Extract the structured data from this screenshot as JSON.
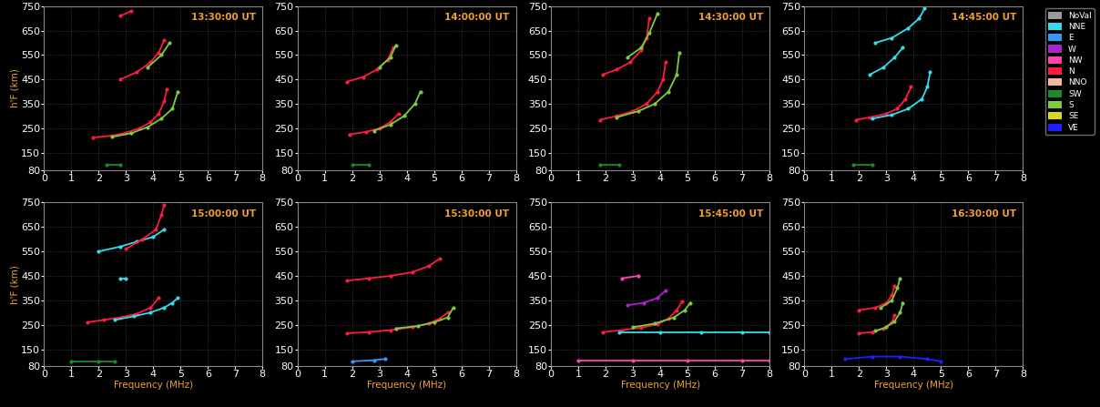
{
  "legend": "upper right",
  "color_key": [
    {
      "name": "NoVal",
      "color": "#9a9a9a"
    },
    {
      "name": "NNE",
      "color": "#33ddee"
    },
    {
      "name": "E",
      "color": "#3399ff"
    },
    {
      "name": "W",
      "color": "#aa22cc"
    },
    {
      "name": "NW",
      "color": "#ff44aa"
    },
    {
      "name": "N",
      "color": "#ff1a40"
    },
    {
      "name": "NNO",
      "color": "#f5b7a0"
    },
    {
      "name": "SW",
      "color": "#1a8a2a"
    },
    {
      "name": "S",
      "color": "#7ccd3c"
    },
    {
      "name": "SE",
      "color": "#d8d820"
    },
    {
      "name": "VE",
      "color": "#2020ff"
    }
  ],
  "chart_data": [
    {
      "type": "line",
      "title": "13:30:00 UT",
      "y_label": "h'F (km)",
      "grid": true,
      "xlim": [
        0,
        8
      ],
      "xticks": [
        0,
        1,
        2,
        3,
        4,
        5,
        6,
        7,
        8
      ],
      "ylim": [
        80,
        750
      ],
      "yticks": [
        80,
        150,
        250,
        350,
        450,
        550,
        650,
        750
      ],
      "series": [
        {
          "name": "N",
          "color": "#ff1a40",
          "x": [
            1.8,
            2.5,
            3.0,
            3.5,
            3.9,
            4.2,
            4.4,
            4.5
          ],
          "values": [
            212,
            220,
            232,
            250,
            275,
            310,
            360,
            410
          ]
        },
        {
          "name": "S",
          "color": "#7ccd3c",
          "x": [
            2.5,
            3.2,
            3.8,
            4.3,
            4.7,
            4.9
          ],
          "values": [
            215,
            230,
            255,
            290,
            330,
            400
          ]
        },
        {
          "name": "N",
          "color": "#ff1a40",
          "x": [
            2.8,
            3.4,
            3.9,
            4.2,
            4.4
          ],
          "values": [
            450,
            480,
            520,
            560,
            610
          ]
        },
        {
          "name": "S",
          "color": "#7ccd3c",
          "x": [
            3.8,
            4.3,
            4.6
          ],
          "values": [
            500,
            550,
            600
          ]
        },
        {
          "name": "N",
          "color": "#ff1a40",
          "x": [
            2.8,
            3.2
          ],
          "values": [
            710,
            730
          ]
        },
        {
          "name": "SW",
          "color": "#1a8a2a",
          "x": [
            2.3,
            2.8
          ],
          "values": [
            100,
            100
          ]
        }
      ]
    },
    {
      "type": "line",
      "title": "14:00:00 UT",
      "grid": true,
      "xlim": [
        0,
        8
      ],
      "xticks": [
        0,
        1,
        2,
        3,
        4,
        5,
        6,
        7,
        8
      ],
      "ylim": [
        80,
        750
      ],
      "yticks": [
        80,
        150,
        250,
        350,
        450,
        550,
        650,
        750
      ],
      "series": [
        {
          "name": "N",
          "color": "#ff1a40",
          "x": [
            1.9,
            2.5,
            3.0,
            3.4,
            3.7
          ],
          "values": [
            225,
            235,
            250,
            275,
            310
          ]
        },
        {
          "name": "S",
          "color": "#7ccd3c",
          "x": [
            2.8,
            3.4,
            3.9,
            4.3,
            4.5
          ],
          "values": [
            240,
            265,
            300,
            350,
            400
          ]
        },
        {
          "name": "N",
          "color": "#ff1a40",
          "x": [
            1.8,
            2.4,
            2.9,
            3.3,
            3.5
          ],
          "values": [
            440,
            460,
            490,
            530,
            580
          ]
        },
        {
          "name": "S",
          "color": "#7ccd3c",
          "x": [
            3.0,
            3.4,
            3.6
          ],
          "values": [
            500,
            540,
            590
          ]
        },
        {
          "name": "SW",
          "color": "#1a8a2a",
          "x": [
            2.0,
            2.6
          ],
          "values": [
            100,
            100
          ]
        }
      ]
    },
    {
      "type": "line",
      "title": "14:30:00 UT",
      "grid": true,
      "xlim": [
        0,
        8
      ],
      "xticks": [
        0,
        1,
        2,
        3,
        4,
        5,
        6,
        7,
        8
      ],
      "ylim": [
        80,
        750
      ],
      "yticks": [
        80,
        150,
        250,
        350,
        450,
        550,
        650,
        750
      ],
      "series": [
        {
          "name": "N",
          "color": "#ff1a40",
          "x": [
            1.8,
            2.4,
            3.0,
            3.5,
            3.9,
            4.1,
            4.2
          ],
          "values": [
            285,
            300,
            320,
            350,
            400,
            450,
            520
          ]
        },
        {
          "name": "S",
          "color": "#7ccd3c",
          "x": [
            2.4,
            3.2,
            3.8,
            4.3,
            4.6,
            4.7
          ],
          "values": [
            295,
            320,
            350,
            400,
            470,
            560
          ]
        },
        {
          "name": "N",
          "color": "#ff1a40",
          "x": [
            1.9,
            2.4,
            2.9,
            3.3,
            3.5,
            3.6
          ],
          "values": [
            470,
            490,
            520,
            570,
            620,
            700
          ]
        },
        {
          "name": "S",
          "color": "#7ccd3c",
          "x": [
            2.8,
            3.3,
            3.6,
            3.9
          ],
          "values": [
            540,
            580,
            640,
            720
          ]
        },
        {
          "name": "SW",
          "color": "#1a8a2a",
          "x": [
            1.8,
            2.5
          ],
          "values": [
            100,
            100
          ]
        }
      ]
    },
    {
      "type": "line",
      "title": "14:45:00 UT",
      "grid": true,
      "xlim": [
        0,
        8
      ],
      "xticks": [
        0,
        1,
        2,
        3,
        4,
        5,
        6,
        7,
        8
      ],
      "ylim": [
        80,
        750
      ],
      "yticks": [
        80,
        150,
        250,
        350,
        450,
        550,
        650,
        750
      ],
      "series": [
        {
          "name": "N",
          "color": "#ff1a40",
          "x": [
            1.9,
            2.4,
            3.0,
            3.4,
            3.7,
            3.9
          ],
          "values": [
            285,
            295,
            310,
            330,
            370,
            420
          ]
        },
        {
          "name": "NNE",
          "color": "#33ddee",
          "x": [
            2.5,
            3.2,
            3.8,
            4.3,
            4.5,
            4.6
          ],
          "values": [
            290,
            305,
            330,
            370,
            420,
            480
          ]
        },
        {
          "name": "NNE",
          "color": "#33ddee",
          "x": [
            2.4,
            2.9,
            3.3,
            3.6
          ],
          "values": [
            470,
            500,
            540,
            580
          ]
        },
        {
          "name": "NNE",
          "color": "#33ddee",
          "x": [
            2.6,
            3.2,
            3.8,
            4.2,
            4.4
          ],
          "values": [
            600,
            620,
            660,
            700,
            740
          ]
        },
        {
          "name": "SW",
          "color": "#1a8a2a",
          "x": [
            1.8,
            2.5
          ],
          "values": [
            100,
            100
          ]
        }
      ]
    },
    {
      "type": "line",
      "title": "15:00:00 UT",
      "x_label": "Frequency (MHz)",
      "y_label": "h'F (km)",
      "grid": true,
      "xlim": [
        0,
        8
      ],
      "xticks": [
        0,
        1,
        2,
        3,
        4,
        5,
        6,
        7,
        8
      ],
      "ylim": [
        80,
        750
      ],
      "yticks": [
        80,
        150,
        250,
        350,
        450,
        550,
        650,
        750
      ],
      "series": [
        {
          "name": "N",
          "color": "#ff1a40",
          "x": [
            1.6,
            2.2,
            2.8,
            3.4,
            3.9,
            4.2
          ],
          "values": [
            260,
            270,
            280,
            295,
            320,
            360
          ]
        },
        {
          "name": "NNE",
          "color": "#33ddee",
          "x": [
            2.6,
            3.3,
            3.9,
            4.4,
            4.7,
            4.9
          ],
          "values": [
            270,
            285,
            300,
            320,
            340,
            360
          ]
        },
        {
          "name": "NNE",
          "color": "#33ddee",
          "x": [
            2.0,
            2.8,
            3.4,
            4.0,
            4.4
          ],
          "values": [
            550,
            570,
            590,
            610,
            640
          ]
        },
        {
          "name": "N",
          "color": "#ff1a40",
          "x": [
            3.0,
            3.6,
            4.1,
            4.3,
            4.4
          ],
          "values": [
            560,
            600,
            640,
            700,
            740
          ]
        },
        {
          "name": "NNE",
          "color": "#33ddee",
          "x": [
            2.8,
            3.0
          ],
          "values": [
            440,
            440
          ]
        },
        {
          "name": "SW",
          "color": "#1a8a2a",
          "x": [
            1.0,
            2.0,
            2.6
          ],
          "values": [
            100,
            100,
            100
          ]
        }
      ]
    },
    {
      "type": "line",
      "title": "15:30:00 UT",
      "x_label": "Frequency (MHz)",
      "grid": true,
      "xlim": [
        0,
        8
      ],
      "xticks": [
        0,
        1,
        2,
        3,
        4,
        5,
        6,
        7,
        8
      ],
      "ylim": [
        80,
        750
      ],
      "yticks": [
        80,
        150,
        250,
        350,
        450,
        550,
        650,
        750
      ],
      "series": [
        {
          "name": "N",
          "color": "#ff1a40",
          "x": [
            1.8,
            2.6,
            3.4,
            4.2,
            4.8,
            5.2,
            5.5
          ],
          "values": [
            215,
            220,
            228,
            240,
            255,
            275,
            300
          ]
        },
        {
          "name": "S",
          "color": "#7ccd3c",
          "x": [
            3.6,
            4.4,
            5.0,
            5.5,
            5.7
          ],
          "values": [
            235,
            245,
            260,
            280,
            320
          ]
        },
        {
          "name": "N",
          "color": "#ff1a40",
          "x": [
            1.8,
            2.6,
            3.4,
            4.2,
            4.8,
            5.2
          ],
          "values": [
            430,
            440,
            450,
            465,
            490,
            520
          ]
        },
        {
          "name": "E",
          "color": "#3399ff",
          "x": [
            2.0,
            2.8,
            3.2
          ],
          "values": [
            100,
            105,
            110
          ]
        }
      ]
    },
    {
      "type": "line",
      "title": "15:45:00 UT",
      "x_label": "Frequency (MHz)",
      "grid": true,
      "xlim": [
        0,
        8
      ],
      "xticks": [
        0,
        1,
        2,
        3,
        4,
        5,
        6,
        7,
        8
      ],
      "ylim": [
        80,
        750
      ],
      "yticks": [
        80,
        150,
        250,
        350,
        450,
        550,
        650,
        750
      ],
      "series": [
        {
          "name": "N",
          "color": "#ff1a40",
          "x": [
            1.9,
            2.6,
            3.3,
            3.9,
            4.3,
            4.6,
            4.8
          ],
          "values": [
            220,
            228,
            238,
            252,
            275,
            310,
            345
          ]
        },
        {
          "name": "S",
          "color": "#7ccd3c",
          "x": [
            3.0,
            3.8,
            4.5,
            4.9,
            5.1
          ],
          "values": [
            240,
            255,
            280,
            310,
            340
          ]
        },
        {
          "name": "NNE",
          "color": "#33ddee",
          "x": [
            2.5,
            4.0,
            5.5,
            7.0,
            8.0
          ],
          "values": [
            220,
            220,
            220,
            220,
            220
          ]
        },
        {
          "name": "W",
          "color": "#aa22cc",
          "x": [
            2.8,
            3.4,
            3.9,
            4.2
          ],
          "values": [
            330,
            340,
            360,
            390
          ]
        },
        {
          "name": "NW",
          "color": "#ff44aa",
          "x": [
            2.6,
            3.2
          ],
          "values": [
            440,
            450
          ]
        },
        {
          "name": "NW",
          "color": "#ff44aa",
          "x": [
            1.0,
            3.0,
            5.0,
            7.0,
            8.0
          ],
          "values": [
            105,
            105,
            105,
            105,
            105
          ]
        }
      ]
    },
    {
      "type": "line",
      "title": "16:30:00 UT",
      "x_label": "Frequency (MHz)",
      "grid": true,
      "xlim": [
        0,
        8
      ],
      "xticks": [
        0,
        1,
        2,
        3,
        4,
        5,
        6,
        7,
        8
      ],
      "ylim": [
        80,
        750
      ],
      "yticks": [
        80,
        150,
        250,
        350,
        450,
        550,
        650,
        750
      ],
      "series": [
        {
          "name": "N",
          "color": "#ff1a40",
          "x": [
            2.0,
            2.5,
            2.9,
            3.2,
            3.3
          ],
          "values": [
            215,
            220,
            235,
            260,
            290
          ]
        },
        {
          "name": "S",
          "color": "#7ccd3c",
          "x": [
            2.6,
            3.0,
            3.3,
            3.5,
            3.6
          ],
          "values": [
            225,
            240,
            265,
            300,
            340
          ]
        },
        {
          "name": "N",
          "color": "#ff1a40",
          "x": [
            2.0,
            2.6,
            3.0,
            3.2,
            3.3
          ],
          "values": [
            310,
            320,
            340,
            370,
            410
          ]
        },
        {
          "name": "S",
          "color": "#7ccd3c",
          "x": [
            2.8,
            3.2,
            3.4,
            3.5
          ],
          "values": [
            320,
            350,
            400,
            440
          ]
        },
        {
          "name": "VE",
          "color": "#2020ff",
          "x": [
            1.5,
            2.5,
            3.5,
            4.5,
            5.0
          ],
          "values": [
            110,
            120,
            120,
            110,
            100
          ]
        }
      ]
    }
  ]
}
